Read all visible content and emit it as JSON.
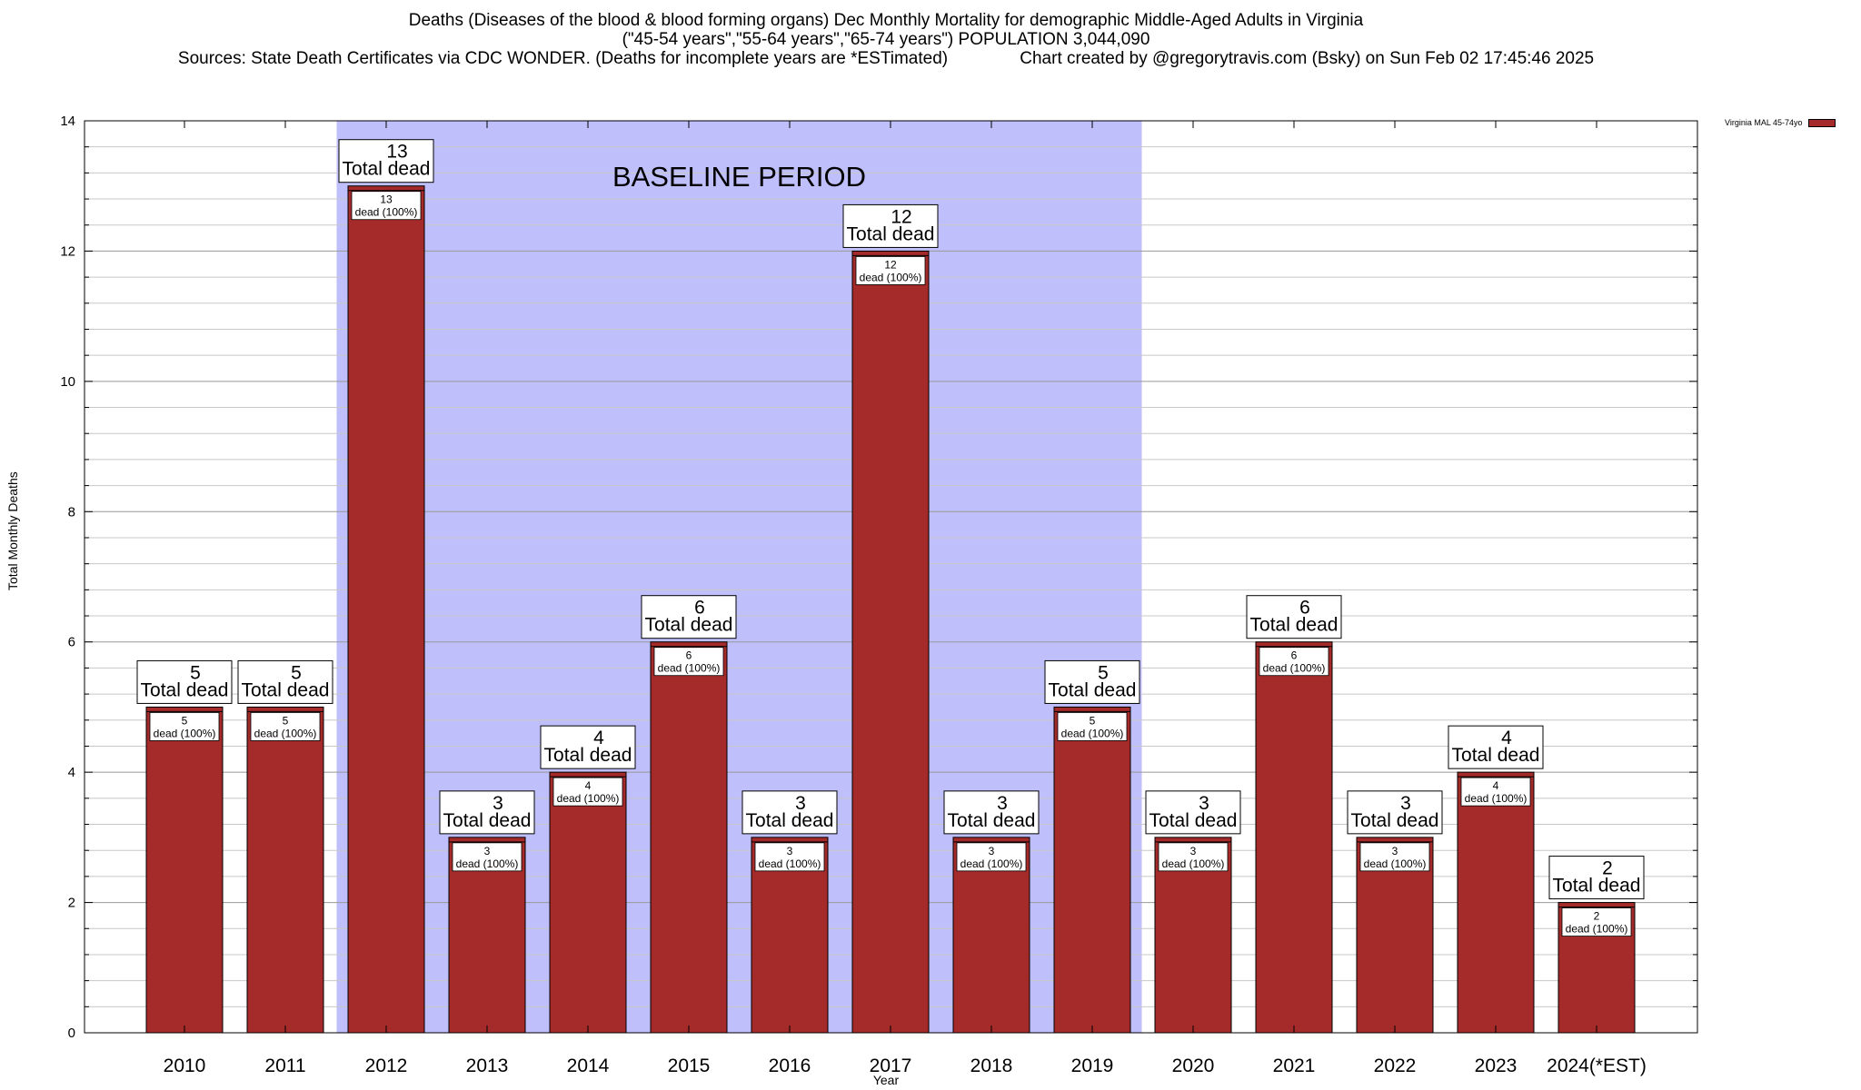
{
  "header": {
    "title_line1": "Deaths (Diseases of the blood & blood forming organs) Dec Monthly Mortality for demographic Middle-Aged Adults in Virginia",
    "title_line2": "(\"45-54 years\",\"55-64 years\",\"65-74 years\") POPULATION 3,044,090",
    "title_line3": "Sources: State Death Certificates via CDC WONDER. (Deaths for incomplete years are *ESTimated)               Chart created by @gregorytravis.com (Bsky) on Sun Feb 02 17:45:46 2025"
  },
  "legend": {
    "label": "Virginia MAL 45-74yo"
  },
  "colors": {
    "bar": "#a52a2a",
    "baseline_band": "#bfbffb",
    "grid": "#b0b0b0"
  },
  "chart_data": {
    "type": "bar",
    "title": "Deaths (Diseases of the blood & blood forming organs) Dec Monthly Mortality for demographic Middle-Aged Adults in Virginia",
    "xlabel": "Year",
    "ylabel": "Total Monthly Deaths",
    "ylim": [
      0,
      14
    ],
    "yticks": [
      0,
      2,
      4,
      6,
      8,
      10,
      12,
      14
    ],
    "grid": true,
    "legend_position": "top-right",
    "categories": [
      "2010",
      "2011",
      "2012",
      "2013",
      "2014",
      "2015",
      "2016",
      "2017",
      "2018",
      "2019",
      "2020",
      "2021",
      "2022",
      "2023",
      "2024(*EST)"
    ],
    "series": [
      {
        "name": "Virginia MAL 45-74yo",
        "values": [
          5,
          5,
          13,
          3,
          4,
          6,
          3,
          12,
          3,
          5,
          3,
          6,
          3,
          4,
          2
        ]
      }
    ],
    "baseline_period": {
      "label": "BASELINE PERIOD",
      "from": "2012",
      "to": "2019"
    },
    "total_label_suffix": "Total dead",
    "inner_label_suffix": "dead (100%)"
  }
}
